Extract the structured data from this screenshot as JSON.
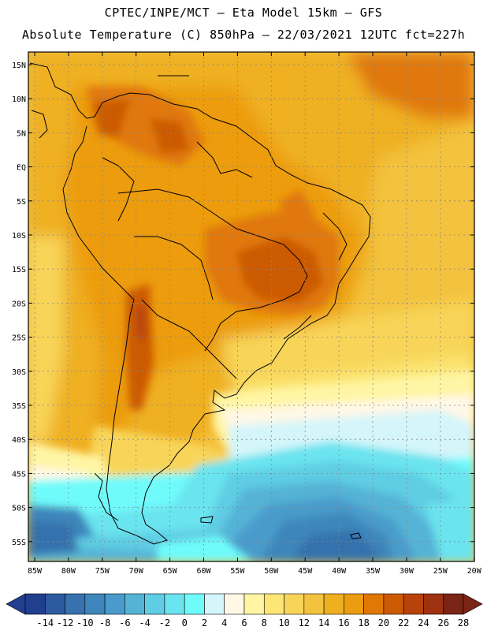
{
  "header": {
    "line1": "CPTEC/INPE/MCT —  Eta Model 15km — GFS",
    "line2": "Absolute Temperature (C) 850hPa — 22/03/2021 12UTC fct=227h"
  },
  "map": {
    "lat_labels": [
      "15N",
      "10N",
      "5N",
      "EQ",
      "5S",
      "10S",
      "15S",
      "20S",
      "25S",
      "30S",
      "35S",
      "40S",
      "45S",
      "50S",
      "55S"
    ],
    "lon_labels": [
      "85W",
      "80W",
      "75W",
      "70W",
      "65W",
      "60W",
      "55W",
      "50W",
      "45W",
      "40W",
      "35W",
      "30W",
      "25W",
      "20W"
    ]
  },
  "colorbar": {
    "labels": [
      "-14",
      "-12",
      "-10",
      "-8",
      "-6",
      "-4",
      "-2",
      "0",
      "2",
      "4",
      "6",
      "8",
      "10",
      "12",
      "14",
      "16",
      "18",
      "20",
      "22",
      "24",
      "26",
      "28"
    ],
    "colors": [
      "#213f8f",
      "#2c5a9e",
      "#3672ad",
      "#3e86bb",
      "#4a9bcb",
      "#55b3d6",
      "#5fcde3",
      "#6ae4ef",
      "#70fbfb",
      "#d4f5fa",
      "#fff8e6",
      "#fff5a4",
      "#fce675",
      "#f8d558",
      "#f3c23e",
      "#efb020",
      "#ec9c10",
      "#e07807",
      "#cc5a05",
      "#b8430a",
      "#9c3210",
      "#7a2416"
    ],
    "low_color": "#213f8f",
    "high_color": "#7a2416"
  }
}
